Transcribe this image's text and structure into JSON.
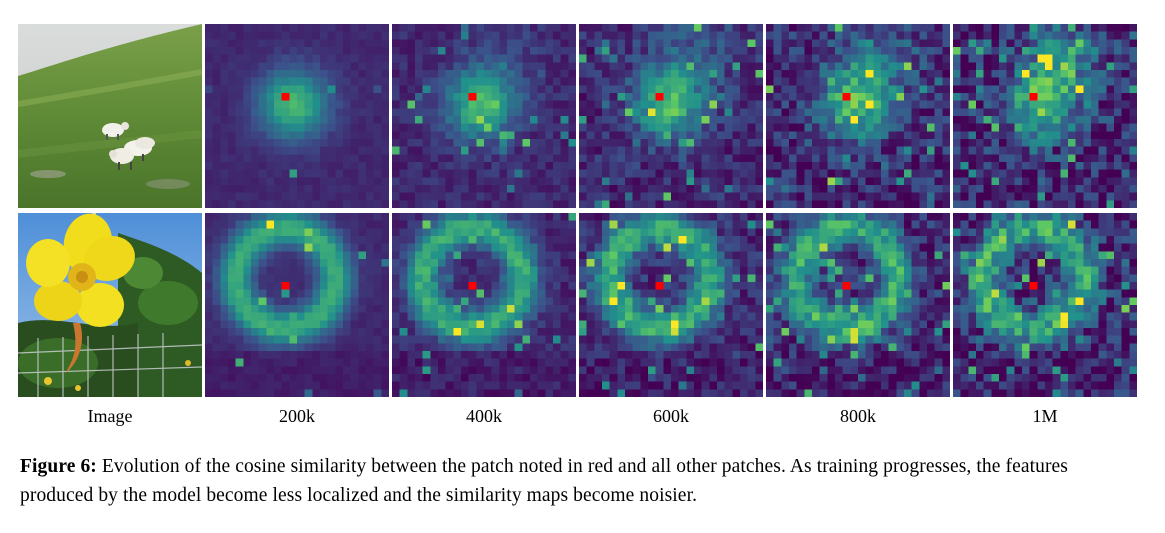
{
  "figure": {
    "columns": [
      "Image",
      "200k",
      "400k",
      "600k",
      "800k",
      "1M"
    ],
    "rows": [
      {
        "subject": "sheep-on-hillside",
        "query_patch": "red"
      },
      {
        "subject": "yellow-flower",
        "query_patch": "red"
      }
    ],
    "colormap": [
      "#440154",
      "#3b528b",
      "#21918c",
      "#5ec962",
      "#fde725"
    ],
    "query_color": "#ff0000"
  },
  "caption": {
    "label": "Figure 6:",
    "text": "Evolution of the cosine similarity between the patch noted in red and all other patches. As training progresses, the features produced by the model become less localized and the similarity maps become noisier."
  }
}
